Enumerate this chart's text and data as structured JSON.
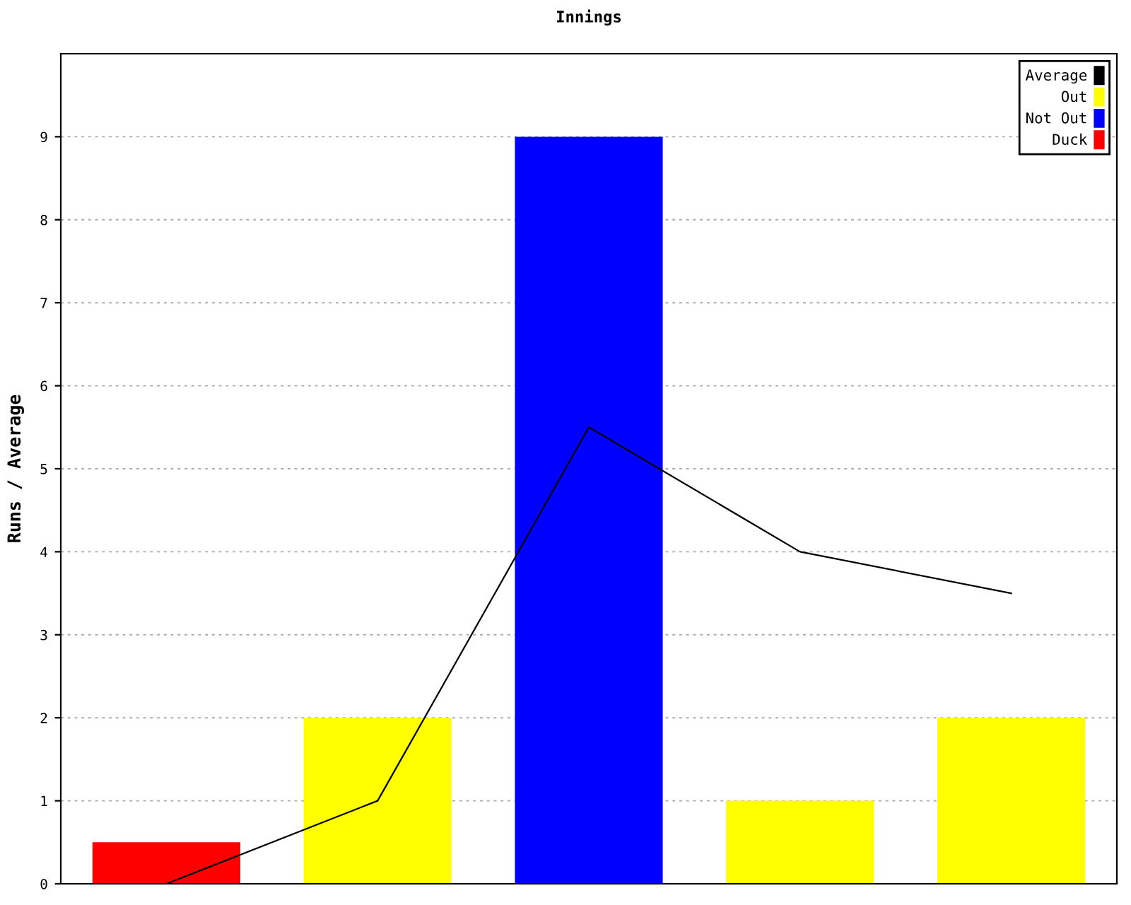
{
  "chart_data": {
    "type": "bar",
    "title": "Innings",
    "ylabel": "Runs / Average",
    "categories": [
      null,
      null,
      null,
      null,
      null
    ],
    "series": [
      {
        "name": "Average",
        "type": "line",
        "color": "#000000",
        "values": [
          0,
          1,
          5.5,
          4,
          3.5
        ]
      },
      {
        "name": "Out",
        "color": "#ffff00",
        "values": [
          null,
          2,
          null,
          1,
          2
        ]
      },
      {
        "name": "Not Out",
        "color": "#0000ff",
        "values": [
          null,
          null,
          9,
          null,
          null
        ]
      },
      {
        "name": "Duck",
        "color": "#ff0000",
        "values": [
          0.5,
          null,
          null,
          null,
          null
        ]
      }
    ],
    "ylim": [
      0,
      10
    ],
    "yticks": [
      0,
      1,
      2,
      3,
      4,
      5,
      6,
      7,
      8,
      9
    ],
    "grid": "y",
    "legend": "top right",
    "marker": "none",
    "line_style": "solid"
  }
}
